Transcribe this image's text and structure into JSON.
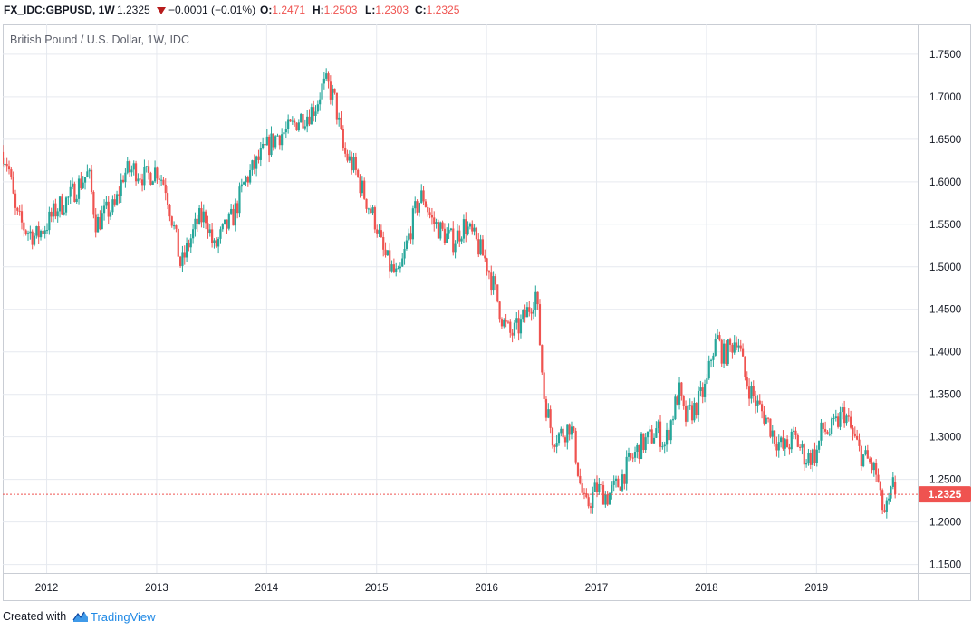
{
  "header": {
    "symbol": "FX_IDC:GBPUSD, 1W",
    "price": "1.2325",
    "change": "−0.0001 (−0.01%)",
    "o_label": "O:",
    "o_value": "1.2471",
    "h_label": "H:",
    "h_value": "1.2503",
    "l_label": "L:",
    "l_value": "1.2303",
    "c_label": "C:",
    "c_value": "1.2325"
  },
  "footer": {
    "created_with": "Created with",
    "brand": "TradingView"
  },
  "colors": {
    "up": "#26a69a",
    "down": "#ef5350",
    "grid": "#e6e9ef",
    "last_price_bg": "#ef5350"
  },
  "chart_data": {
    "type": "candlestick",
    "title": "British Pound / U.S. Dollar, 1W, IDC",
    "xlabel": "",
    "ylabel": "",
    "ylim": [
      1.14,
      1.785
    ],
    "xlim": [
      2011.6,
      2019.92
    ],
    "y_ticks": [
      "1.1500",
      "1.2000",
      "1.2500",
      "1.3000",
      "1.3500",
      "1.4000",
      "1.4500",
      "1.5000",
      "1.5500",
      "1.6000",
      "1.6500",
      "1.7000",
      "1.7500"
    ],
    "x_ticks": [
      "2012",
      "2013",
      "2014",
      "2015",
      "2016",
      "2017",
      "2018",
      "2019"
    ],
    "last_price": 1.2325,
    "last_price_label": "1.2325",
    "grid": true,
    "close_series": {
      "t": [
        2011.6,
        2011.65,
        2011.72,
        2011.8,
        2011.9,
        2012.0,
        2012.1,
        2012.2,
        2012.28,
        2012.38,
        2012.45,
        2012.55,
        2012.62,
        2012.7,
        2012.8,
        2012.9,
        2013.0,
        2013.08,
        2013.15,
        2013.22,
        2013.3,
        2013.38,
        2013.45,
        2013.52,
        2013.6,
        2013.7,
        2013.8,
        2013.9,
        2014.0,
        2014.1,
        2014.2,
        2014.3,
        2014.38,
        2014.45,
        2014.5,
        2014.55,
        2014.62,
        2014.7,
        2014.8,
        2014.9,
        2015.0,
        2015.05,
        2015.12,
        2015.2,
        2015.28,
        2015.36,
        2015.42,
        2015.5,
        2015.6,
        2015.7,
        2015.8,
        2015.9,
        2016.0,
        2016.08,
        2016.15,
        2016.22,
        2016.3,
        2016.38,
        2016.45,
        2016.48,
        2016.52,
        2016.6,
        2016.7,
        2016.76,
        2016.8,
        2016.85,
        2016.9,
        2017.0,
        2017.1,
        2017.2,
        2017.3,
        2017.4,
        2017.5,
        2017.55,
        2017.62,
        2017.7,
        2017.75,
        2017.8,
        2017.9,
        2018.0,
        2018.05,
        2018.1,
        2018.15,
        2018.22,
        2018.28,
        2018.35,
        2018.45,
        2018.55,
        2018.62,
        2018.7,
        2018.8,
        2018.9,
        2019.0,
        2019.05,
        2019.12,
        2019.18,
        2019.25,
        2019.32,
        2019.4,
        2019.48,
        2019.55,
        2019.58,
        2019.62,
        2019.66,
        2019.7,
        2019.72
      ],
      "close": [
        1.635,
        1.62,
        1.56,
        1.545,
        1.535,
        1.55,
        1.57,
        1.58,
        1.595,
        1.61,
        1.55,
        1.565,
        1.57,
        1.61,
        1.615,
        1.605,
        1.615,
        1.595,
        1.55,
        1.5,
        1.53,
        1.555,
        1.56,
        1.52,
        1.54,
        1.56,
        1.6,
        1.62,
        1.64,
        1.655,
        1.66,
        1.675,
        1.68,
        1.69,
        1.71,
        1.715,
        1.695,
        1.635,
        1.615,
        1.58,
        1.55,
        1.52,
        1.5,
        1.485,
        1.53,
        1.57,
        1.585,
        1.555,
        1.54,
        1.53,
        1.55,
        1.53,
        1.505,
        1.47,
        1.435,
        1.42,
        1.43,
        1.45,
        1.47,
        1.42,
        1.35,
        1.3,
        1.305,
        1.315,
        1.29,
        1.245,
        1.215,
        1.24,
        1.23,
        1.245,
        1.27,
        1.29,
        1.3,
        1.31,
        1.29,
        1.33,
        1.355,
        1.32,
        1.335,
        1.36,
        1.4,
        1.415,
        1.395,
        1.405,
        1.42,
        1.37,
        1.34,
        1.32,
        1.3,
        1.285,
        1.3,
        1.275,
        1.28,
        1.31,
        1.305,
        1.315,
        1.33,
        1.305,
        1.28,
        1.27,
        1.255,
        1.225,
        1.21,
        1.22,
        1.245,
        1.2325
      ]
    }
  }
}
